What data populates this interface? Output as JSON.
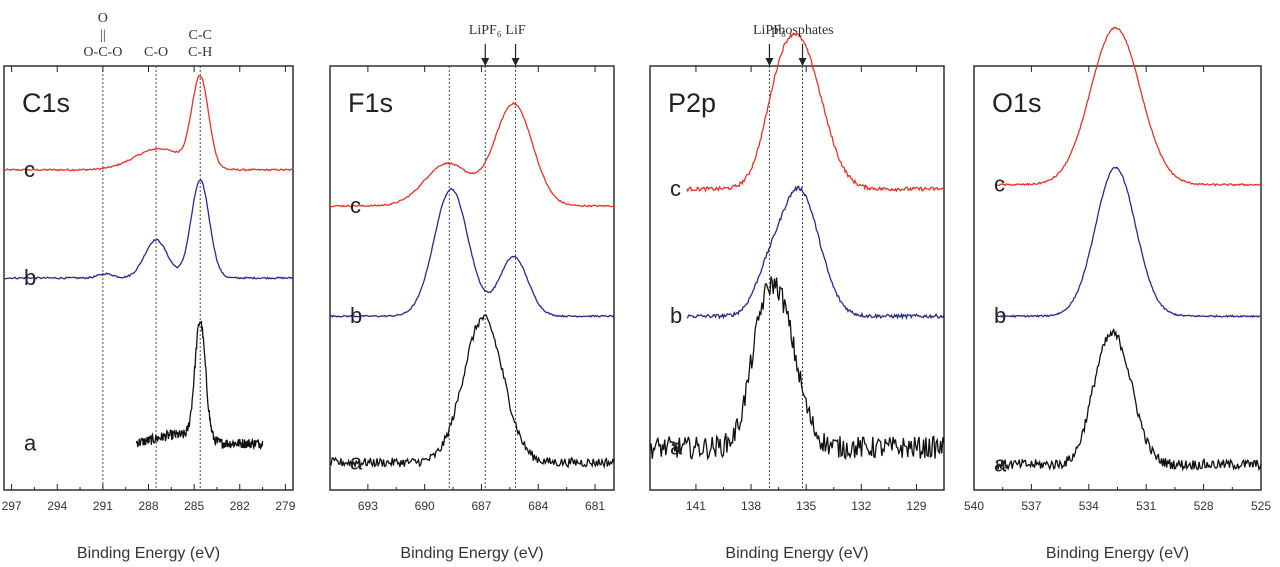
{
  "chart_data": [
    {
      "type": "line",
      "panel_label": "C1s",
      "xlabel": "Binding Energy (eV)",
      "xlim": [
        297.5,
        278.5
      ],
      "xticks": [
        297,
        294,
        291,
        288,
        285,
        282,
        279
      ],
      "reference_lines": [
        291,
        287.5,
        284.6
      ],
      "annotations": [
        {
          "lines": [
            "O",
            "||",
            "O-C-O"
          ],
          "x": 291
        },
        {
          "lines": [
            "C-O"
          ],
          "x": 287.5
        },
        {
          "lines": [
            "C-C",
            "C-H"
          ],
          "x": 284.6
        }
      ],
      "series": [
        {
          "name": "c",
          "color": "#e8322a",
          "x_start": 297.5,
          "baseline": 0.755,
          "peaks": [
            [
              284.6,
              0.21,
              0.55
            ],
            [
              287.3,
              0.05,
              1.6
            ]
          ]
        },
        {
          "name": "b",
          "color": "#2a2a8a",
          "x_start": 297.5,
          "baseline": 0.5,
          "peaks": [
            [
              284.6,
              0.23,
              0.6
            ],
            [
              287.5,
              0.09,
              0.75
            ],
            [
              290.8,
              0.01,
              0.5
            ]
          ]
        },
        {
          "name": "a",
          "color": "#111111",
          "x_start": 288.8,
          "x_end": 280.5,
          "baseline": 0.11,
          "peaks": [
            [
              284.6,
              0.28,
              0.35
            ],
            [
              286.2,
              0.02,
              1.2
            ]
          ]
        }
      ]
    },
    {
      "type": "line",
      "panel_label": "F1s",
      "xlabel": "Binding Energy (eV)",
      "xlim": [
        695,
        680
      ],
      "xticks": [
        693,
        690,
        687,
        684,
        681
      ],
      "reference_lines": [
        688.7,
        686.8,
        685.2
      ],
      "annotations": [
        {
          "lines": [
            "LiPF₆"
          ],
          "x": 686.8,
          "arrow": true
        },
        {
          "lines": [
            "LiF"
          ],
          "x": 685.2,
          "arrow": true
        }
      ],
      "series": [
        {
          "name": "c",
          "color": "#e8322a",
          "x_start": 695,
          "baseline": 0.67,
          "peaks": [
            [
              688.8,
              0.1,
              1.2
            ],
            [
              685.3,
              0.24,
              1.0
            ]
          ]
        },
        {
          "name": "b",
          "color": "#2a2a8a",
          "x_start": 695,
          "baseline": 0.41,
          "peaks": [
            [
              688.6,
              0.3,
              0.9
            ],
            [
              685.3,
              0.14,
              0.75
            ]
          ]
        },
        {
          "name": "a",
          "color": "#111111",
          "x_start": 695,
          "baseline": 0.065,
          "peaks": [
            [
              686.9,
              0.34,
              1.05
            ]
          ]
        }
      ]
    },
    {
      "type": "line",
      "panel_label": "P2p",
      "xlabel": "Binding Energy (eV)",
      "xlim": [
        143.5,
        127.5
      ],
      "xticks": [
        141,
        138,
        135,
        132,
        129
      ],
      "reference_lines": [
        137,
        135.2
      ],
      "annotations": [
        {
          "lines": [
            "LiPF₆"
          ],
          "x": 137,
          "arrow": true
        },
        {
          "lines": [
            "phosphates"
          ],
          "x": 135.2,
          "arrow": true
        }
      ],
      "series": [
        {
          "name": "c",
          "color": "#e8322a",
          "x_start": 141.5,
          "baseline": 0.71,
          "peaks": [
            [
              135.3,
              0.33,
              1.2
            ],
            [
              136.6,
              0.1,
              0.8
            ]
          ]
        },
        {
          "name": "b",
          "color": "#2a2a8a",
          "x_start": 141.5,
          "baseline": 0.41,
          "peaks": [
            [
              135.4,
              0.3,
              1.1
            ],
            [
              137.2,
              0.06,
              0.7
            ]
          ]
        },
        {
          "name": "a",
          "color": "#111111",
          "x_start": 143.5,
          "baseline": 0.1,
          "peaks": [
            [
              136.6,
              0.36,
              1.0
            ],
            [
              137.6,
              0.08,
              0.6
            ]
          ]
        }
      ]
    },
    {
      "type": "line",
      "panel_label": "O1s",
      "xlabel": "Binding Energy (eV)",
      "xlim": [
        540,
        525
      ],
      "xticks": [
        540,
        537,
        534,
        531,
        528,
        525
      ],
      "reference_lines": [],
      "annotations": [],
      "series": [
        {
          "name": "c",
          "color": "#e8322a",
          "x_start": 538.8,
          "baseline": 0.72,
          "peaks": [
            [
              532.6,
              0.37,
              1.3
            ]
          ]
        },
        {
          "name": "b",
          "color": "#2a2a8a",
          "x_start": 538.8,
          "baseline": 0.41,
          "peaks": [
            [
              532.6,
              0.35,
              1.05
            ]
          ]
        },
        {
          "name": "a",
          "color": "#111111",
          "x_start": 538.8,
          "baseline": 0.06,
          "peaks": [
            [
              532.6,
              0.29,
              0.9
            ],
            [
              533.6,
              0.06,
              0.6
            ]
          ]
        }
      ]
    }
  ]
}
